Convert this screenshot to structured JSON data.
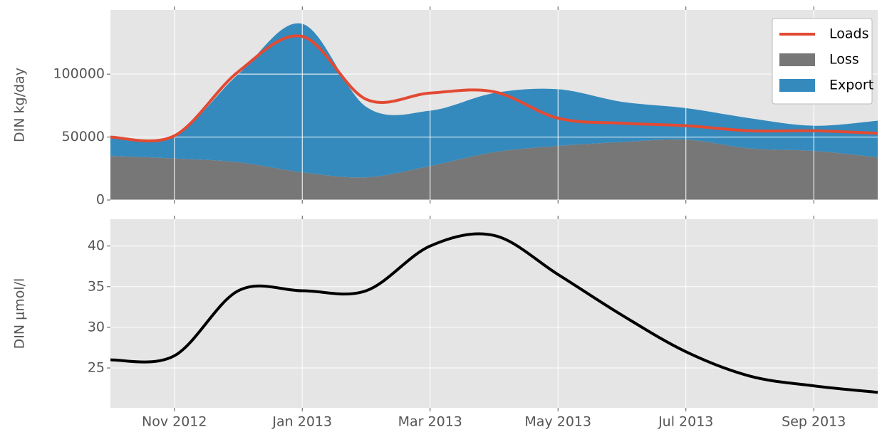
{
  "chart_data": [
    {
      "type": "area",
      "ylabel": "DIN kg/day",
      "x": [
        "2012-10",
        "2012-11",
        "2012-12",
        "2013-01",
        "2013-02",
        "2013-03",
        "2013-04",
        "2013-05",
        "2013-06",
        "2013-07",
        "2013-08",
        "2013-09",
        "2013-10"
      ],
      "xlim": [
        "2012-10",
        "2013-10"
      ],
      "ylim": [
        0,
        151000
      ],
      "yticks": [
        0,
        50000,
        100000
      ],
      "grid": true,
      "legend": "upper right",
      "series": [
        {
          "name": "Loads",
          "color": "#e24a33",
          "kind": "line",
          "values": [
            50000,
            51000,
            102000,
            130000,
            80000,
            85000,
            86000,
            65000,
            61000,
            59000,
            55000,
            55000,
            53000
          ]
        },
        {
          "name": "Loss",
          "color": "#777777",
          "kind": "stacked",
          "values": [
            35000,
            33000,
            30000,
            22000,
            18000,
            27000,
            38000,
            43000,
            46000,
            48000,
            41000,
            39000,
            34000
          ]
        },
        {
          "name": "Export",
          "color": "#348abd",
          "kind": "stacked",
          "values": [
            16000,
            18000,
            70000,
            118000,
            56000,
            44000,
            47000,
            45000,
            32000,
            25000,
            24000,
            20000,
            29000
          ]
        }
      ]
    },
    {
      "type": "line",
      "ylabel": "DIN μmol/l",
      "x": [
        "2012-10",
        "2012-11",
        "2012-12",
        "2013-01",
        "2013-02",
        "2013-03",
        "2013-04",
        "2013-05",
        "2013-06",
        "2013-07",
        "2013-08",
        "2013-09",
        "2013-10"
      ],
      "xlim": [
        "2012-10",
        "2013-10"
      ],
      "xticks": [
        {
          "value": "2012-11",
          "label": "Nov 2012"
        },
        {
          "value": "2013-01",
          "label": "Jan 2013"
        },
        {
          "value": "2013-03",
          "label": "Mar 2013"
        },
        {
          "value": "2013-05",
          "label": "May 2013"
        },
        {
          "value": "2013-07",
          "label": "Jul 2013"
        },
        {
          "value": "2013-09",
          "label": "Sep 2013"
        }
      ],
      "ylim": [
        20.1,
        43.3
      ],
      "yticks": [
        25,
        30,
        35,
        40
      ],
      "grid": true,
      "series": [
        {
          "color": "#000000",
          "values": [
            26,
            26.5,
            34.5,
            34.5,
            34.5,
            40,
            41.3,
            36.5,
            31.5,
            27,
            24,
            22.8,
            22
          ]
        }
      ]
    }
  ]
}
